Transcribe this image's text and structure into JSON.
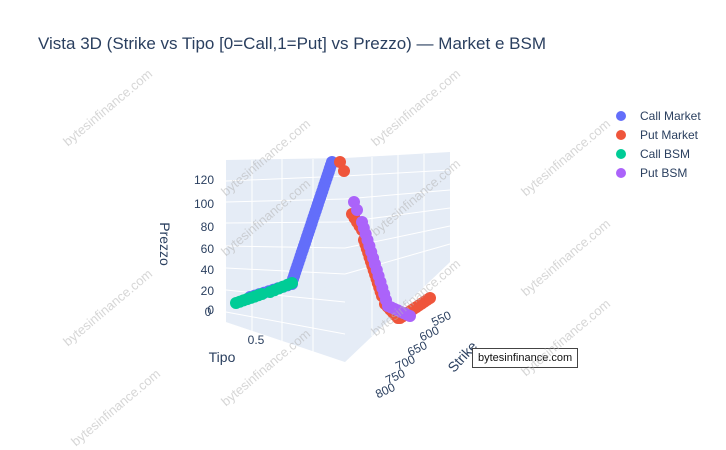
{
  "chart_data": {
    "type": "scatter3d",
    "title": "Vista 3D (Strike vs Tipo [0=Call,1=Put] vs Prezzo) — Market e BSM",
    "axes": {
      "x": {
        "label": "Strike",
        "ticks": [
          "550",
          "600",
          "650",
          "700",
          "750",
          "800"
        ]
      },
      "y": {
        "label": "Tipo",
        "ticks": [
          "0",
          "0.5"
        ]
      },
      "z": {
        "label": "Prezzo",
        "ticks": [
          "0",
          "20",
          "40",
          "60",
          "80",
          "100",
          "120"
        ],
        "range": [
          0,
          135
        ]
      }
    },
    "legend_placement": "top-right",
    "series": [
      {
        "name": "Call Market",
        "color": "#636efa"
      },
      {
        "name": "Put Market",
        "color": "#ef553b"
      },
      {
        "name": "Call BSM",
        "color": "#00cc96"
      },
      {
        "name": "Put BSM",
        "color": "#ab63fa"
      }
    ]
  },
  "watermark": {
    "label": "bytesinfinance.com",
    "repeated_text": "bytesinfinance.com"
  }
}
